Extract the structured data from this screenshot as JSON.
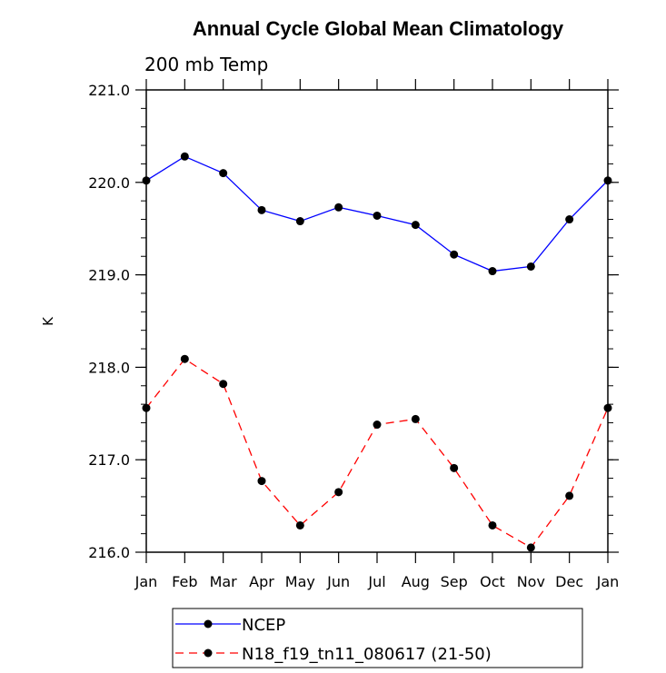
{
  "chart_data": {
    "type": "line",
    "title": "Annual Cycle Global Mean Climatology",
    "subtitle": "200 mb Temp",
    "xlabel": "",
    "ylabel": "K",
    "categories": [
      "Jan",
      "Feb",
      "Mar",
      "Apr",
      "May",
      "Jun",
      "Jul",
      "Aug",
      "Sep",
      "Oct",
      "Nov",
      "Dec",
      "Jan"
    ],
    "ylim": [
      216.0,
      221.0
    ],
    "yticks": [
      "216.0",
      "217.0",
      "218.0",
      "219.0",
      "220.0",
      "221.0"
    ],
    "grid": false,
    "legend_position": "bottom",
    "series": [
      {
        "name": "NCEP",
        "color": "#0000ff",
        "style": "solid",
        "values": [
          220.02,
          220.28,
          220.1,
          219.7,
          219.58,
          219.73,
          219.64,
          219.54,
          219.22,
          219.04,
          219.09,
          219.6,
          220.02
        ]
      },
      {
        "name": "N18_f19_tn11_080617 (21-50)",
        "color": "#ff0000",
        "style": "dashed",
        "values": [
          217.56,
          218.09,
          217.82,
          216.77,
          216.29,
          216.65,
          217.38,
          217.44,
          216.91,
          216.29,
          216.05,
          216.61,
          217.56
        ]
      }
    ]
  }
}
